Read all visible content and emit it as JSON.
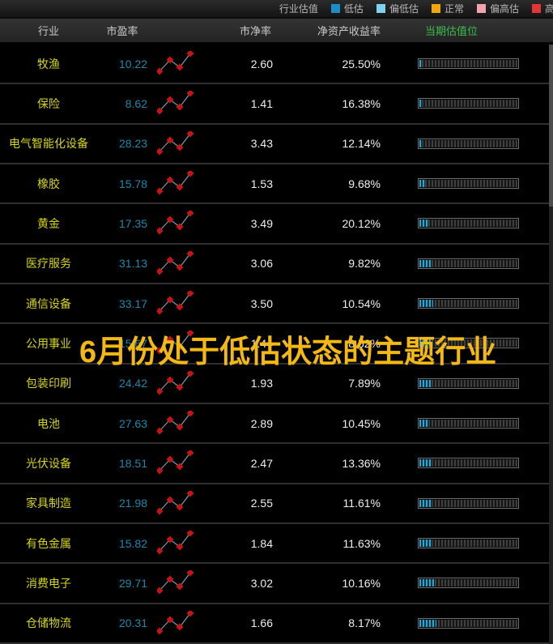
{
  "legend": {
    "title": "行业估值",
    "items": [
      {
        "label": "低估",
        "color": "#1b8ec9"
      },
      {
        "label": "偏低估",
        "color": "#7fd2ef"
      },
      {
        "label": "正常",
        "color": "#f2a60d"
      },
      {
        "label": "偏高估",
        "color": "#f2a3ad"
      },
      {
        "label": "高估",
        "color": "#e23535"
      }
    ]
  },
  "header": {
    "col_industry": "行业",
    "col_pe": "市盈率",
    "col_pb": "市净率",
    "col_roe": "净资产收益率",
    "col_valuation": "当期估值位",
    "valuation_header_color": "#3dbc4d"
  },
  "overlay": {
    "text": "6月份处于低估状态的主题行业",
    "color": "#f4b812"
  },
  "sparkline": {
    "points": [
      [
        3,
        25
      ],
      [
        16,
        11
      ],
      [
        28,
        20
      ],
      [
        41,
        3
      ]
    ],
    "line_color": "#8098ad",
    "point_color": "#c51414"
  },
  "table": {
    "rows": [
      {
        "industry": "牧渔",
        "pe": "10.22",
        "pb": "2.60",
        "roe": "25.50%",
        "valuation_pct": 2.5
      },
      {
        "industry": "保险",
        "pe": "8.62",
        "pb": "1.41",
        "roe": "16.38%",
        "valuation_pct": 3
      },
      {
        "industry": "电气智能化设备",
        "pe": "28.23",
        "pb": "3.43",
        "roe": "12.14%",
        "valuation_pct": 3
      },
      {
        "industry": "橡胶",
        "pe": "15.78",
        "pb": "1.53",
        "roe": "9.68%",
        "valuation_pct": 5.5
      },
      {
        "industry": "黄金",
        "pe": "17.35",
        "pb": "3.49",
        "roe": "20.12%",
        "valuation_pct": 9
      },
      {
        "industry": "医疗服务",
        "pe": "31.13",
        "pb": "3.06",
        "roe": "9.82%",
        "valuation_pct": 11
      },
      {
        "industry": "通信设备",
        "pe": "33.17",
        "pb": "3.50",
        "roe": "10.54%",
        "valuation_pct": 14
      },
      {
        "industry": "公用事业",
        "pe": "15.67",
        "pb": "1.44",
        "roe": "8.52%",
        "valuation_pct": 11
      },
      {
        "industry": "包装印刷",
        "pe": "24.42",
        "pb": "1.93",
        "roe": "7.89%",
        "valuation_pct": 11
      },
      {
        "industry": "电池",
        "pe": "27.63",
        "pb": "2.89",
        "roe": "10.45%",
        "valuation_pct": 10
      },
      {
        "industry": "光伏设备",
        "pe": "18.51",
        "pb": "2.47",
        "roe": "13.36%",
        "valuation_pct": 13
      },
      {
        "industry": "家具制造",
        "pe": "21.98",
        "pb": "2.55",
        "roe": "11.61%",
        "valuation_pct": 13
      },
      {
        "industry": "有色金属",
        "pe": "15.82",
        "pb": "1.84",
        "roe": "11.63%",
        "valuation_pct": 13
      },
      {
        "industry": "消费电子",
        "pe": "29.71",
        "pb": "3.02",
        "roe": "10.16%",
        "valuation_pct": 15
      },
      {
        "industry": "仓储物流",
        "pe": "20.31",
        "pb": "1.66",
        "roe": "8.17%",
        "valuation_pct": 17
      }
    ]
  }
}
